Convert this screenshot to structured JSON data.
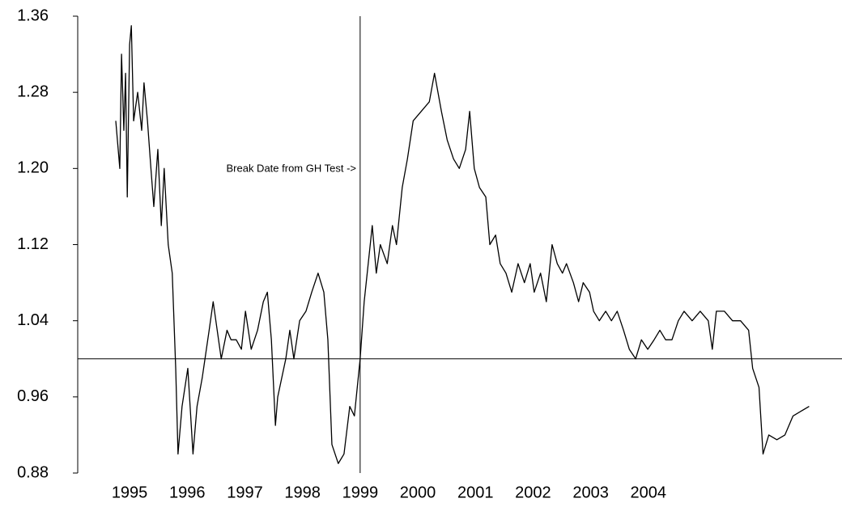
{
  "chart_data": {
    "type": "line",
    "annotation": "Break Date from GH Test ->",
    "reference_lines": {
      "y": 1.0,
      "x": 1999.0
    },
    "x": [
      1994.76,
      1994.83,
      1994.86,
      1994.9,
      1994.93,
      1994.96,
      1995.0,
      1995.03,
      1995.07,
      1995.14,
      1995.21,
      1995.25,
      1995.31,
      1995.37,
      1995.42,
      1995.49,
      1995.55,
      1995.6,
      1995.67,
      1995.74,
      1995.8,
      1995.84,
      1995.91,
      1996.01,
      1996.1,
      1996.17,
      1996.26,
      1996.38,
      1996.45,
      1996.52,
      1996.59,
      1996.69,
      1996.76,
      1996.85,
      1996.94,
      1997.01,
      1997.11,
      1997.22,
      1997.32,
      1997.39,
      1997.46,
      1997.53,
      1997.57,
      1997.64,
      1997.71,
      1997.78,
      1997.85,
      1997.95,
      1998.06,
      1998.16,
      1998.27,
      1998.37,
      1998.44,
      1998.51,
      1998.62,
      1998.72,
      1998.82,
      1998.9,
      1999.0,
      1999.07,
      1999.14,
      1999.21,
      1999.28,
      1999.35,
      1999.47,
      1999.56,
      1999.63,
      1999.73,
      1999.82,
      1999.92,
      2000.06,
      2000.2,
      2000.29,
      2000.41,
      2000.51,
      2000.62,
      2000.72,
      2000.83,
      2000.9,
      2000.98,
      2001.07,
      2001.18,
      2001.25,
      2001.35,
      2001.43,
      2001.53,
      2001.63,
      2001.74,
      2001.85,
      2001.95,
      2002.02,
      2002.13,
      2002.23,
      2002.33,
      2002.42,
      2002.51,
      2002.58,
      2002.7,
      2002.79,
      2002.87,
      2002.98,
      2003.05,
      2003.15,
      2003.26,
      2003.36,
      2003.46,
      2003.57,
      2003.67,
      2003.78,
      2003.88,
      2003.99,
      2004.1,
      2004.2,
      2004.3,
      2004.41,
      2004.52,
      2004.62,
      2004.76,
      2004.9,
      2005.04,
      2005.11,
      2005.18,
      2005.32,
      2005.46,
      2005.6,
      2005.74,
      2005.81,
      2005.92,
      2005.99,
      2006.09,
      2006.23,
      2006.37,
      2006.51,
      2006.65,
      2006.79
    ],
    "series": [
      {
        "color": "#000000",
        "values": [
          1.25,
          1.2,
          1.32,
          1.24,
          1.3,
          1.17,
          1.33,
          1.35,
          1.25,
          1.28,
          1.24,
          1.29,
          1.25,
          1.2,
          1.16,
          1.22,
          1.14,
          1.2,
          1.12,
          1.09,
          0.99,
          0.9,
          0.95,
          0.99,
          0.9,
          0.95,
          0.98,
          1.03,
          1.06,
          1.03,
          1.0,
          1.03,
          1.02,
          1.02,
          1.01,
          1.05,
          1.01,
          1.03,
          1.06,
          1.07,
          1.02,
          0.93,
          0.96,
          0.98,
          1.0,
          1.03,
          1.0,
          1.04,
          1.05,
          1.07,
          1.09,
          1.07,
          1.02,
          0.91,
          0.89,
          0.9,
          0.95,
          0.94,
          1.0,
          1.06,
          1.1,
          1.14,
          1.09,
          1.12,
          1.1,
          1.14,
          1.12,
          1.18,
          1.21,
          1.25,
          1.26,
          1.27,
          1.3,
          1.26,
          1.23,
          1.21,
          1.2,
          1.22,
          1.26,
          1.2,
          1.18,
          1.17,
          1.12,
          1.13,
          1.1,
          1.09,
          1.07,
          1.1,
          1.08,
          1.1,
          1.07,
          1.09,
          1.06,
          1.12,
          1.1,
          1.09,
          1.1,
          1.08,
          1.06,
          1.08,
          1.07,
          1.05,
          1.04,
          1.05,
          1.04,
          1.05,
          1.03,
          1.01,
          1.0,
          1.02,
          1.01,
          1.02,
          1.03,
          1.02,
          1.02,
          1.04,
          1.05,
          1.04,
          1.05,
          1.04,
          1.01,
          1.05,
          1.05,
          1.04,
          1.04,
          1.03,
          0.99,
          0.97,
          0.9,
          0.92,
          0.915,
          0.92,
          0.94,
          0.945,
          0.95
        ]
      }
    ],
    "xlim": [
      1994.1,
      2007.36
    ],
    "xticks": [
      1995,
      1996,
      1997,
      1998,
      1999,
      2000,
      2001,
      2002,
      2003,
      2004
    ],
    "ylim": [
      0.88,
      1.36
    ],
    "yticks": [
      0.88,
      0.96,
      1.04,
      1.12,
      {
        "value": 1.2,
        "label": "1.20"
      },
      1.28,
      1.36
    ],
    "grid": false
  }
}
